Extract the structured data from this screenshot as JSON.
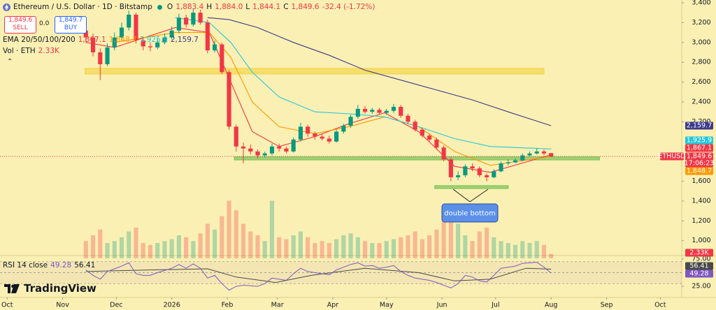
{
  "header": {
    "title": "Ethereum / U.S. Dollar · 1D · Bitstamp",
    "o_label": "O",
    "open": "1,883.4",
    "h_label": "H",
    "high": "1,884.0",
    "l_label": "L",
    "low": "1,844.1",
    "c_label": "C",
    "close": "1,849.6",
    "change": "-32.4 (-1.72%)"
  },
  "trade": {
    "sell_price": "1,849.6",
    "sell": "SELL",
    "spread": "0.0",
    "buy_price": "1,849.7",
    "buy": "BUY"
  },
  "branding": "TradingView",
  "chart_data": {
    "type": "candlestick",
    "up_color": "#089981",
    "down_color": "#f23645",
    "x": [
      44,
      48,
      52,
      56,
      60,
      64,
      68,
      72,
      76,
      80,
      84,
      88,
      92,
      96,
      100,
      104,
      108,
      112,
      116,
      120,
      124,
      128,
      132,
      136,
      140,
      144,
      148,
      152,
      156,
      160,
      164,
      168,
      172,
      176,
      180,
      184,
      188,
      192,
      196,
      200,
      204,
      208,
      212,
      216,
      220,
      224,
      228,
      232,
      236,
      240,
      244,
      248,
      252,
      256,
      260,
      264,
      268,
      272,
      276,
      280,
      284,
      288,
      292,
      296,
      300,
      304
    ],
    "open": [
      3120,
      3050,
      2900,
      2780,
      2950,
      3050,
      3150,
      3280,
      3020,
      2960,
      2950,
      3000,
      3050,
      3120,
      3250,
      3180,
      3300,
      3200,
      2920,
      2980,
      2700,
      2150,
      1950,
      1930,
      1900,
      1860,
      1880,
      1950,
      1930,
      1900,
      2020,
      2150,
      2080,
      2050,
      2030,
      2000,
      2100,
      2160,
      2250,
      2330,
      2300,
      2320,
      2290,
      2310,
      2350,
      2260,
      2200,
      2120,
      2060,
      2020,
      1940,
      1820,
      1640,
      1660,
      1750,
      1730,
      1660,
      1640,
      1700,
      1780,
      1790,
      1810,
      1860,
      1880,
      1900,
      1883.4
    ],
    "high": [
      3180,
      3090,
      2940,
      2990,
      3100,
      3200,
      3320,
      3300,
      3060,
      3000,
      3040,
      3090,
      3160,
      3290,
      3280,
      3340,
      3330,
      3230,
      3020,
      3000,
      2720,
      2170,
      1990,
      1970,
      1920,
      1900,
      1980,
      1980,
      1950,
      2040,
      2190,
      2170,
      2100,
      2080,
      2060,
      2120,
      2180,
      2270,
      2370,
      2360,
      2340,
      2340,
      2330,
      2380,
      2370,
      2280,
      2220,
      2140,
      2080,
      2040,
      1960,
      1840,
      1700,
      1770,
      1780,
      1750,
      1680,
      1720,
      1800,
      1820,
      1830,
      1880,
      1900,
      1930,
      1920,
      1884.0
    ],
    "low": [
      3000,
      2860,
      2620,
      2760,
      2920,
      3020,
      3120,
      2990,
      2920,
      2910,
      2930,
      2980,
      3030,
      3090,
      3150,
      3160,
      3180,
      2890,
      2900,
      2680,
      2120,
      1900,
      1780,
      1870,
      1830,
      1840,
      1860,
      1900,
      1880,
      1890,
      2000,
      2050,
      2020,
      2010,
      1980,
      1990,
      2080,
      2140,
      2230,
      2280,
      2280,
      2270,
      2270,
      2290,
      2240,
      2180,
      2100,
      2040,
      2000,
      1920,
      1800,
      1600,
      1610,
      1640,
      1700,
      1640,
      1600,
      1630,
      1690,
      1760,
      1780,
      1800,
      1850,
      1870,
      1860,
      1844.1
    ],
    "close": [
      3050,
      2900,
      2780,
      2950,
      3050,
      3150,
      3280,
      3020,
      2960,
      2950,
      3000,
      3050,
      3120,
      3250,
      3180,
      3300,
      3200,
      2920,
      2980,
      2700,
      2150,
      1950,
      1930,
      1900,
      1860,
      1880,
      1950,
      1930,
      1900,
      2020,
      2150,
      2080,
      2050,
      2030,
      2000,
      2100,
      2160,
      2250,
      2330,
      2300,
      2320,
      2290,
      2310,
      2350,
      2260,
      2200,
      2120,
      2060,
      2020,
      1940,
      1820,
      1640,
      1660,
      1750,
      1730,
      1660,
      1640,
      1700,
      1780,
      1790,
      1810,
      1860,
      1880,
      1900,
      1880,
      1849.6
    ],
    "xlim": [
      -4,
      377
    ],
    "ylim": [
      822,
      3428
    ],
    "xticks": [
      {
        "value": 0,
        "label": "Oct"
      },
      {
        "value": 31,
        "label": "Nov"
      },
      {
        "value": 61,
        "label": "Dec"
      },
      {
        "value": 92,
        "label": "2026"
      },
      {
        "value": 123,
        "label": "Feb"
      },
      {
        "value": 151,
        "label": "Mar"
      },
      {
        "value": 182,
        "label": "Apr"
      },
      {
        "value": 212,
        "label": "May"
      },
      {
        "value": 243,
        "label": "Jun"
      },
      {
        "value": 273,
        "label": "Jul"
      },
      {
        "value": 304,
        "label": "Aug"
      },
      {
        "value": 335,
        "label": "Sep"
      },
      {
        "value": 365,
        "label": "Oct"
      }
    ],
    "yticks": [
      {
        "value": 3400,
        "label": "3,400"
      },
      {
        "value": 3200,
        "label": "3,200"
      },
      {
        "value": 3000,
        "label": "3,000"
      },
      {
        "value": 2800,
        "label": "2,800"
      },
      {
        "value": 2600,
        "label": "2,600"
      },
      {
        "value": 2400,
        "label": "2,400"
      },
      {
        "value": 2200,
        "label": "2,200"
      },
      {
        "value": 1600,
        "label": "1,600"
      },
      {
        "value": 1400,
        "label": "1,400"
      },
      {
        "value": 1200,
        "label": "1,200"
      },
      {
        "value": 1000,
        "label": "1,000"
      }
    ],
    "symbol_tag": "ETHUSD",
    "countdown": "17:06:23",
    "ema": {
      "label": "EMA 20/50/100/200",
      "series": [
        {
          "color": "#f23645",
          "last_label": "1,867.1",
          "x": [
            44,
            60,
            94,
            113,
            125,
            137,
            152,
            172,
            191,
            211,
            230,
            250,
            270,
            304
          ],
          "values": [
            3000,
            2950,
            3150,
            3100,
            2600,
            2100,
            1950,
            2050,
            2180,
            2290,
            2100,
            1750,
            1690,
            1867.1
          ]
        },
        {
          "color": "#ff9800",
          "last_label": "1,848.7",
          "x": [
            60,
            94,
            113,
            125,
            137,
            152,
            172,
            191,
            211,
            230,
            250,
            270,
            304
          ],
          "values": [
            3000,
            3100,
            3100,
            2850,
            2400,
            2150,
            2080,
            2150,
            2250,
            2150,
            1900,
            1760,
            1848.7
          ]
        },
        {
          "color": "#26c6da",
          "last_label": "1,925.9",
          "x": [
            94,
            113,
            125,
            137,
            152,
            172,
            191,
            211,
            230,
            250,
            270,
            304
          ],
          "values": [
            3250,
            3200,
            3000,
            2700,
            2450,
            2300,
            2280,
            2250,
            2150,
            2030,
            1950,
            1925.9
          ]
        },
        {
          "color": "#3d3a8c",
          "last_label": "2,159.7",
          "x": [
            112,
            124,
            140,
            160,
            180,
            200,
            220,
            240,
            260,
            280,
            304
          ],
          "values": [
            3250,
            3230,
            3150,
            3000,
            2870,
            2720,
            2620,
            2520,
            2420,
            2300,
            2159.7
          ]
        }
      ]
    },
    "volume": {
      "label": "Vol · ETH",
      "last_label": "2.33K",
      "ylim": [
        0,
        40000
      ],
      "values": [
        9000,
        12000,
        15000,
        8000,
        9000,
        11000,
        14000,
        16000,
        8000,
        7000,
        8000,
        9000,
        10000,
        12000,
        11000,
        9000,
        13000,
        18000,
        15000,
        22000,
        30000,
        25000,
        18000,
        14000,
        12000,
        9000,
        30000,
        11000,
        10000,
        12000,
        14000,
        11000,
        8000,
        9000,
        8000,
        10000,
        12000,
        13000,
        11000,
        9000,
        8000,
        8000,
        9000,
        10000,
        11000,
        12000,
        14000,
        10000,
        12000,
        15000,
        22000,
        26000,
        18000,
        12000,
        9000,
        14000,
        16000,
        11000,
        9000,
        8000,
        7000,
        9000,
        8000,
        9000,
        7000,
        2330
      ]
    },
    "rsi": {
      "label": "RSI 14 close",
      "color": "#7e57c2",
      "ma_color": "#4a4a4a",
      "ylim": [
        20,
        80
      ],
      "yticks": [
        {
          "value": 75,
          "label": "75.00"
        },
        {
          "value": 25,
          "label": "25.00"
        }
      ],
      "levels": [
        30,
        50,
        70
      ],
      "values": [
        55,
        45,
        38,
        52,
        57,
        62,
        68,
        48,
        45,
        45,
        50,
        54,
        58,
        65,
        58,
        66,
        58,
        40,
        45,
        30,
        18,
        25,
        27,
        26,
        25,
        30,
        40,
        38,
        36,
        48,
        58,
        52,
        50,
        48,
        46,
        55,
        60,
        65,
        68,
        62,
        63,
        58,
        60,
        63,
        52,
        45,
        40,
        38,
        36,
        32,
        27,
        22,
        30,
        45,
        42,
        35,
        33,
        45,
        58,
        60,
        62,
        67,
        68,
        69,
        60,
        49.28
      ],
      "ma_x": [
        44,
        80,
        112,
        128,
        150,
        170,
        200,
        230,
        250,
        270,
        290,
        304
      ],
      "ma_values": [
        52,
        55,
        57,
        42,
        32,
        45,
        58,
        50,
        35,
        38,
        58,
        56.41
      ]
    },
    "zones": [
      {
        "x": [
          43.5,
          300
        ],
        "y": [
          2682,
          2738
        ],
        "color": "#f2d54e"
      },
      {
        "x": [
          127,
          331
        ],
        "y": [
          1815,
          1845
        ],
        "color": "#7cc45a"
      },
      {
        "x": [
          239,
          280
        ],
        "y": [
          1527,
          1555
        ],
        "color": "#7cc45a"
      }
    ],
    "annotation": "double bottom"
  }
}
